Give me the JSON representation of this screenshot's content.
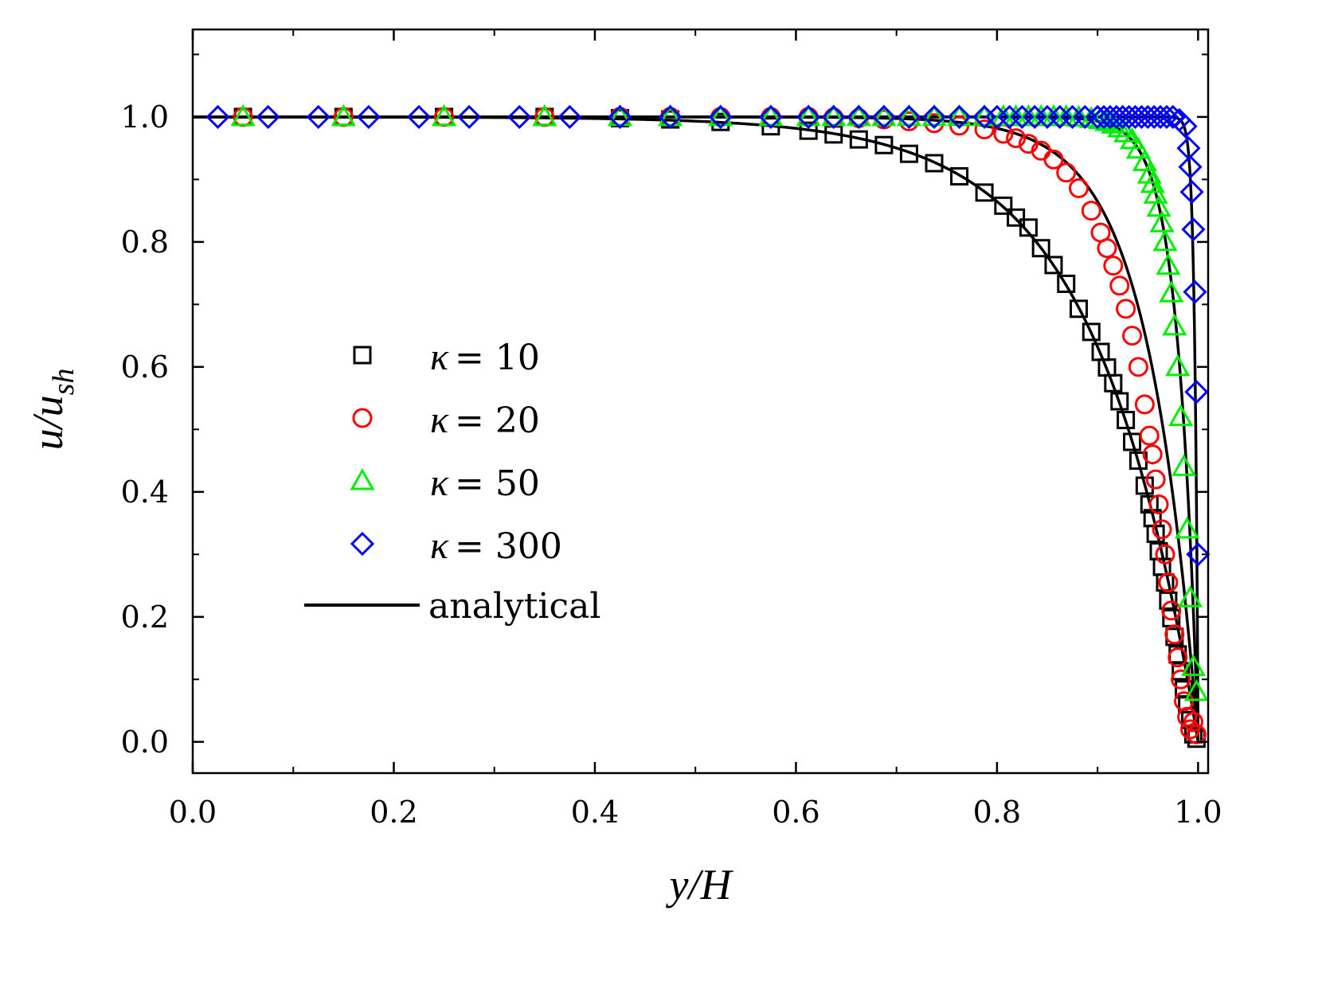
{
  "chart_data": {
    "type": "scatter",
    "title": "",
    "xlabel": "y/H",
    "ylabel": "u/u_sh",
    "xlabel_parts": {
      "num": "y",
      "slash": "/",
      "den": "H"
    },
    "ylabel_parts": {
      "num": "u",
      "slash": "/",
      "den": "u",
      "sub": "sh"
    },
    "xlim": [
      0.0,
      1.01
    ],
    "ylim": [
      -0.05,
      1.14
    ],
    "xticks": [
      0.0,
      0.2,
      0.4,
      0.6,
      0.8,
      1.0
    ],
    "xtick_labels": [
      "0.0",
      "0.2",
      "0.4",
      "0.6",
      "0.8",
      "1.0"
    ],
    "yticks": [
      0.0,
      0.2,
      0.4,
      0.6,
      0.8,
      1.0
    ],
    "ytick_labels": [
      "0.0",
      "0.2",
      "0.4",
      "0.6",
      "0.8",
      "1.0"
    ],
    "grid": false,
    "legend_position": "center-left",
    "legend_kappa_symbol": "κ",
    "colors": {
      "k10": "#000000",
      "k20": "#ff0000",
      "k50": "#00ee00",
      "k300": "#0000ff",
      "analytical": "#000000"
    },
    "series": [
      {
        "name": "κ = 10",
        "label_value": "= 10",
        "kappa": 10,
        "marker": "square",
        "color_key": "k10",
        "x": [
          0.05,
          0.15,
          0.25,
          0.35,
          0.425,
          0.475,
          0.525,
          0.575,
          0.6125,
          0.6375,
          0.6625,
          0.6875,
          0.7125,
          0.7375,
          0.7625,
          0.7875,
          0.8063,
          0.8188,
          0.8313,
          0.8438,
          0.8563,
          0.8688,
          0.8813,
          0.8938,
          0.9031,
          0.9094,
          0.9156,
          0.9219,
          0.9281,
          0.9344,
          0.9406,
          0.9469,
          0.9516,
          0.9547,
          0.9578,
          0.9609,
          0.9641,
          0.9672,
          0.9703,
          0.9734,
          0.9766,
          0.9797,
          0.9828,
          0.9859,
          0.9891,
          0.9922,
          0.9953,
          0.9984
        ],
        "y": [
          1.0,
          1.0,
          1.0,
          1.0,
          0.998,
          0.996,
          0.992,
          0.985,
          0.978,
          0.972,
          0.964,
          0.955,
          0.941,
          0.926,
          0.905,
          0.879,
          0.858,
          0.839,
          0.823,
          0.79,
          0.763,
          0.733,
          0.693,
          0.656,
          0.624,
          0.599,
          0.574,
          0.545,
          0.515,
          0.48,
          0.45,
          0.41,
          0.38,
          0.358,
          0.333,
          0.305,
          0.28,
          0.255,
          0.226,
          0.198,
          0.168,
          0.14,
          0.113,
          0.084,
          0.06,
          0.035,
          0.012,
          0.005
        ]
      },
      {
        "name": "κ = 20",
        "label_value": "= 20",
        "kappa": 20,
        "marker": "circle",
        "color_key": "k20",
        "x": [
          0.05,
          0.15,
          0.25,
          0.35,
          0.425,
          0.475,
          0.525,
          0.575,
          0.6125,
          0.6375,
          0.6625,
          0.6875,
          0.7125,
          0.7375,
          0.7625,
          0.7875,
          0.8063,
          0.8188,
          0.8313,
          0.8438,
          0.8563,
          0.8688,
          0.8813,
          0.8938,
          0.9031,
          0.9094,
          0.9156,
          0.9219,
          0.9281,
          0.9344,
          0.9406,
          0.9469,
          0.9516,
          0.9547,
          0.9578,
          0.9609,
          0.9641,
          0.9672,
          0.9703,
          0.9734,
          0.9766,
          0.9797,
          0.9828,
          0.9859,
          0.9891,
          0.9922,
          0.9953,
          0.9984
        ],
        "y": [
          1.0,
          1.0,
          1.0,
          1.0,
          1.0,
          1.0,
          1.0,
          1.0,
          1.0,
          0.999,
          0.998,
          0.996,
          0.993,
          0.99,
          0.986,
          0.98,
          0.973,
          0.966,
          0.957,
          0.946,
          0.932,
          0.911,
          0.886,
          0.85,
          0.815,
          0.79,
          0.762,
          0.73,
          0.693,
          0.65,
          0.6,
          0.54,
          0.49,
          0.46,
          0.42,
          0.38,
          0.34,
          0.3,
          0.255,
          0.21,
          0.172,
          0.135,
          0.1,
          0.065,
          0.04,
          0.02,
          0.032,
          0.012
        ]
      },
      {
        "name": "κ = 50",
        "label_value": "= 50",
        "kappa": 50,
        "marker": "triangle",
        "color_key": "k50",
        "x": [
          0.05,
          0.15,
          0.25,
          0.35,
          0.425,
          0.475,
          0.525,
          0.575,
          0.6125,
          0.6375,
          0.6625,
          0.6875,
          0.7125,
          0.7375,
          0.7625,
          0.7875,
          0.8063,
          0.8188,
          0.8313,
          0.8438,
          0.8563,
          0.8688,
          0.8813,
          0.8938,
          0.9031,
          0.9094,
          0.9156,
          0.9219,
          0.9281,
          0.9344,
          0.9406,
          0.9469,
          0.9516,
          0.9547,
          0.9578,
          0.9609,
          0.9641,
          0.9672,
          0.9703,
          0.9734,
          0.9766,
          0.9797,
          0.9828,
          0.9859,
          0.9891,
          0.9922,
          0.9953,
          0.9984
        ],
        "y": [
          1.0,
          1.0,
          1.0,
          1.0,
          1.0,
          1.0,
          1.0,
          1.0,
          1.0,
          1.0,
          1.0,
          1.0,
          1.0,
          1.0,
          1.0,
          1.0,
          1.0,
          1.0,
          1.0,
          1.0,
          1.0,
          1.0,
          0.999,
          0.997,
          0.995,
          0.992,
          0.988,
          0.982,
          0.974,
          0.963,
          0.948,
          0.928,
          0.908,
          0.893,
          0.876,
          0.855,
          0.83,
          0.8,
          0.762,
          0.718,
          0.665,
          0.6,
          0.52,
          0.44,
          0.34,
          0.23,
          0.12,
          0.08
        ]
      },
      {
        "name": "κ = 300",
        "label_value": "= 300",
        "kappa": 300,
        "marker": "diamond",
        "color_key": "k300",
        "x": [
          0.025,
          0.075,
          0.125,
          0.175,
          0.225,
          0.275,
          0.325,
          0.375,
          0.425,
          0.475,
          0.525,
          0.575,
          0.6125,
          0.6375,
          0.6625,
          0.6875,
          0.7125,
          0.7375,
          0.7625,
          0.7875,
          0.8,
          0.8125,
          0.825,
          0.8375,
          0.85,
          0.8625,
          0.875,
          0.8875,
          0.9,
          0.9063,
          0.9125,
          0.9188,
          0.925,
          0.9313,
          0.9375,
          0.9438,
          0.95,
          0.9563,
          0.9625,
          0.9688,
          0.975,
          0.9813,
          0.9875,
          0.9906,
          0.9922,
          0.9938,
          0.9953,
          0.9969,
          0.9984,
          1.0
        ],
        "y": [
          1.0,
          1.0,
          1.0,
          1.0,
          1.0,
          1.0,
          1.0,
          1.0,
          1.0,
          1.0,
          1.0,
          1.0,
          1.0,
          1.0,
          1.0,
          1.0,
          1.0,
          1.0,
          1.0,
          1.0,
          1.0,
          1.0,
          1.0,
          1.0,
          1.0,
          1.0,
          1.0,
          1.0,
          1.0,
          1.0,
          1.0,
          1.0,
          1.0,
          1.0,
          1.0,
          1.0,
          1.0,
          1.0,
          1.0,
          1.0,
          1.0,
          0.995,
          0.985,
          0.95,
          0.92,
          0.88,
          0.82,
          0.72,
          0.56,
          0.3
        ]
      }
    ],
    "analytical": {
      "name": "analytical",
      "style": "line",
      "color_key": "analytical",
      "kappas": [
        10,
        20,
        50,
        300
      ],
      "channel_half_width": 1
    }
  }
}
